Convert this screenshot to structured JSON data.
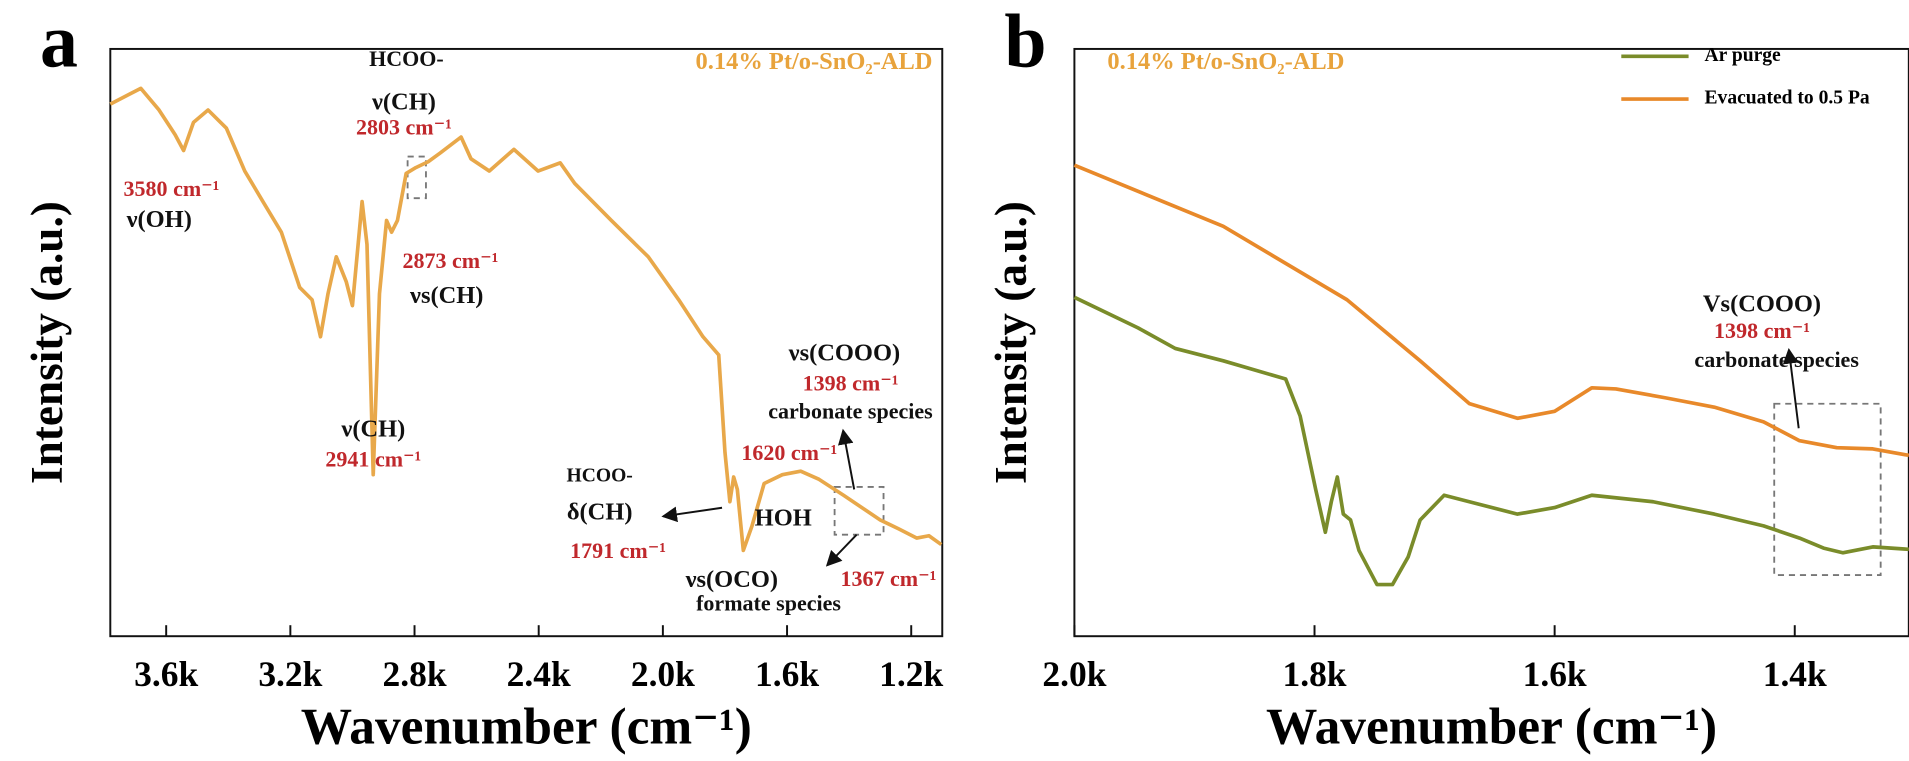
{
  "chart_data": [
    {
      "type": "line",
      "panel": "a",
      "title": "0.14% Pt/o-SnO₂-ALD",
      "title_color": "#e8a33c",
      "xlabel": "Wavenumber (cm⁻¹)",
      "ylabel": "Intensity (a.u.)",
      "xlim": [
        3780,
        1100
      ],
      "ylim": [
        0,
        100
      ],
      "xticks": [
        {
          "value": 3600,
          "label": "3.6k"
        },
        {
          "value": 3200,
          "label": "3.2k"
        },
        {
          "value": 2800,
          "label": "2.8k"
        },
        {
          "value": 2400,
          "label": "2.4k"
        },
        {
          "value": 2000,
          "label": "2.0k"
        },
        {
          "value": 1600,
          "label": "1.6k"
        },
        {
          "value": 1200,
          "label": "1.2k"
        }
      ],
      "color": "#e8a84a",
      "x": [
        3780,
        3682,
        3623,
        3571,
        3544,
        3512,
        3465,
        3406,
        3347,
        3288,
        3229,
        3170,
        3130,
        3103,
        3079,
        3052,
        3020,
        3000,
        2969,
        2953,
        2933,
        2913,
        2890,
        2874,
        2855,
        2827,
        2796,
        2756,
        2717,
        2650,
        2618,
        2559,
        2480,
        2402,
        2331,
        2284,
        2166,
        2047,
        1949,
        1871,
        1820,
        1800,
        1784,
        1772,
        1760,
        1741,
        1713,
        1674,
        1615,
        1556,
        1497,
        1418,
        1359,
        1300,
        1241,
        1182,
        1143,
        1103
      ],
      "values": [
        90.6,
        93.3,
        89.6,
        85.4,
        82.7,
        87.5,
        89.6,
        86.5,
        79.2,
        74.0,
        68.8,
        59.4,
        57.3,
        51.0,
        58.3,
        64.6,
        60.4,
        56.3,
        74.0,
        66.7,
        27.5,
        58.3,
        70.8,
        68.8,
        70.8,
        78.8,
        79.8,
        80.8,
        82.3,
        85.0,
        81.3,
        79.2,
        82.9,
        79.2,
        80.6,
        77.1,
        70.8,
        64.6,
        57.3,
        51.0,
        47.9,
        31.3,
        22.9,
        27.1,
        25.0,
        14.6,
        18.8,
        26.0,
        27.5,
        28.1,
        26.7,
        24.0,
        21.9,
        19.8,
        18.3,
        16.7,
        17.1,
        15.6
      ],
      "annotations": [
        {
          "text": "HCOO-",
          "color": "#111111"
        },
        {
          "text": "ν(CH)",
          "color": "#111111"
        },
        {
          "text": "2803 cm⁻¹",
          "color": "#c0282c"
        },
        {
          "text": "3580 cm⁻¹",
          "color": "#c0282c"
        },
        {
          "text": "ν(OH)",
          "color": "#111111"
        },
        {
          "text": "2873 cm⁻¹",
          "color": "#c0282c"
        },
        {
          "text": "νs(CH)",
          "color": "#111111"
        },
        {
          "text": "ν(CH)",
          "color": "#111111"
        },
        {
          "text": "2941 cm⁻¹",
          "color": "#c0282c"
        },
        {
          "text": "νs(COOO)",
          "color": "#111111"
        },
        {
          "text": "1398 cm⁻¹",
          "color": "#c0282c"
        },
        {
          "text": "carbonate species",
          "color": "#111111"
        },
        {
          "text": "1620 cm⁻¹",
          "color": "#c0282c"
        },
        {
          "text": "HCOO-",
          "color": "#111111"
        },
        {
          "text": "δ(CH)",
          "color": "#111111"
        },
        {
          "text": "HOH",
          "color": "#111111"
        },
        {
          "text": "1791 cm⁻¹",
          "color": "#c0282c"
        },
        {
          "text": "νs(OCO)",
          "color": "#111111"
        },
        {
          "text": "formate species",
          "color": "#111111"
        },
        {
          "text": "1367 cm⁻¹",
          "color": "#c0282c"
        }
      ]
    },
    {
      "type": "line",
      "panel": "b",
      "title": "0.14% Pt/o-SnO₂-ALD",
      "title_color": "#e8a33c",
      "xlabel": "Wavenumber (cm⁻¹)",
      "ylabel": "Intensity (a.u.)",
      "xlim": [
        2000,
        1305
      ],
      "ylim": [
        0,
        100
      ],
      "xticks": [
        {
          "value": 2000,
          "label": "2.0k"
        },
        {
          "value": 1800,
          "label": "1.8k"
        },
        {
          "value": 1600,
          "label": "1.6k"
        },
        {
          "value": 1400,
          "label": "1.4k"
        }
      ],
      "legend": "upper right",
      "series": [
        {
          "name": "Ar purge",
          "color": "#7a8c2a",
          "x": [
            2000,
            1947,
            1916,
            1876,
            1824,
            1812,
            1799,
            1791,
            1786,
            1781,
            1776,
            1770,
            1763,
            1748,
            1735,
            1722,
            1712,
            1692,
            1671,
            1631,
            1600,
            1569,
            1518,
            1467,
            1426,
            1396,
            1376,
            1360,
            1335,
            1305
          ],
          "values": [
            57.7,
            52.5,
            49.0,
            46.9,
            43.8,
            37.5,
            25.0,
            17.7,
            22.9,
            27.1,
            20.8,
            19.8,
            14.6,
            8.8,
            8.8,
            13.5,
            19.8,
            24.0,
            22.9,
            20.8,
            21.9,
            24.0,
            22.9,
            20.8,
            18.8,
            16.7,
            15.0,
            14.2,
            15.2,
            14.8
          ]
        },
        {
          "name": "Evacuated to 0.5 Pa",
          "color": "#e8892a",
          "x": [
            2000,
            1876,
            1773,
            1712,
            1671,
            1631,
            1600,
            1569,
            1549,
            1508,
            1467,
            1426,
            1396,
            1365,
            1335,
            1305
          ],
          "values": [
            80.2,
            69.8,
            57.3,
            46.9,
            39.6,
            37.1,
            38.3,
            42.3,
            42.1,
            40.6,
            39.0,
            36.5,
            33.3,
            32.1,
            31.9,
            30.8
          ]
        }
      ],
      "annotations": [
        {
          "text": "Vs(COOO)",
          "color": "#111111"
        },
        {
          "text": "1398 cm⁻¹",
          "color": "#c0282c"
        },
        {
          "text": "carbonate species",
          "color": "#111111"
        }
      ]
    }
  ]
}
